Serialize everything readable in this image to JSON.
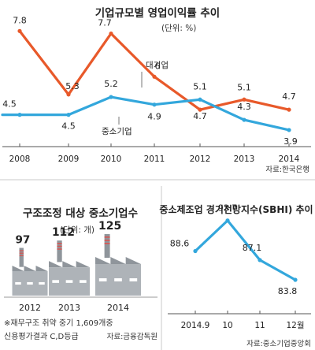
{
  "colors": {
    "large_series": "#e8592a",
    "sme_series": "#33a7dc",
    "factory_body": "#aeb3b8",
    "factory_dark": "#8f959b",
    "factory_stripe": "#d9534f",
    "axis": "#555555",
    "divider": "#c8c8c8"
  },
  "chart_data": [
    {
      "type": "line",
      "title": "기업규모별 영업이익률 추이",
      "unit": "(단위: %)",
      "x": [
        "2008",
        "2009",
        "2010",
        "2011",
        "2012",
        "2013",
        "2014"
      ],
      "series": [
        {
          "name": "대기업",
          "values": [
            7.8,
            5.3,
            7.7,
            6.0,
            4.7,
            5.1,
            4.7
          ]
        },
        {
          "name": "중소기업",
          "values": [
            4.5,
            4.5,
            5.2,
            4.9,
            5.1,
            4.3,
            3.9
          ]
        }
      ],
      "source": "자료:한국은행",
      "grid": false
    },
    {
      "type": "bar",
      "title": "구조조정 대상 중소기업수",
      "unit": "(단위: 개)",
      "categories": [
        "2012",
        "2013",
        "2014"
      ],
      "values": [
        97,
        112,
        125
      ],
      "icon": "factory-icon",
      "footnote": "※재무구조 취약 중기 1,609개중 신용평가결과 C,D등급",
      "source": "자료:금융감독원"
    },
    {
      "type": "line",
      "title": "중소제조업 경기전망지수(SBHI) 추이",
      "x": [
        "2014.9",
        "10",
        "11",
        "12월"
      ],
      "series": [
        {
          "values": [
            88.6,
            93.7,
            87.1,
            83.8
          ]
        }
      ],
      "source": "자료:중소기업중앙회",
      "grid": false
    }
  ]
}
